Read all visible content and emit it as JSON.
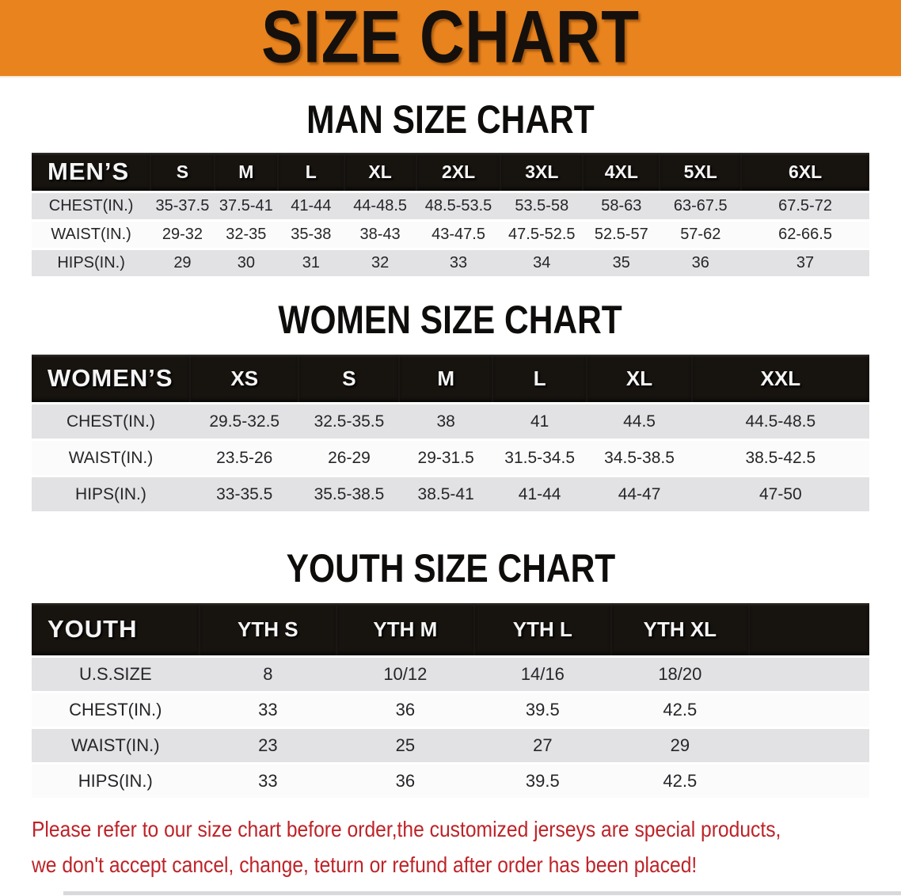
{
  "banner": {
    "title": "SIZE CHART"
  },
  "sections": [
    {
      "heading": "MAN SIZE CHART",
      "table": {
        "header_label": "MEN’S",
        "columns": [
          "S",
          "M",
          "L",
          "XL",
          "2XL",
          "3XL",
          "4XL",
          "5XL",
          "6XL"
        ],
        "rows": [
          {
            "label": "CHEST(IN.)",
            "values": [
              "35-37.5",
              "37.5-41",
              "41-44",
              "44-48.5",
              "48.5-53.5",
              "53.5-58",
              "58-63",
              "63-67.5",
              "67.5-72"
            ]
          },
          {
            "label": "WAIST(IN.)",
            "values": [
              "29-32",
              "32-35",
              "35-38",
              "38-43",
              "43-47.5",
              "47.5-52.5",
              "52.5-57",
              "57-62",
              "62-66.5"
            ]
          },
          {
            "label": "HIPS(IN.)",
            "values": [
              "29",
              "30",
              "31",
              "32",
              "33",
              "34",
              "35",
              "36",
              "37"
            ]
          }
        ]
      }
    },
    {
      "heading": "WOMEN SIZE CHART",
      "table": {
        "header_label": "WOMEN’S",
        "columns": [
          "XS",
          "S",
          "M",
          "L",
          "XL",
          "XXL"
        ],
        "rows": [
          {
            "label": "CHEST(IN.)",
            "values": [
              "29.5-32.5",
              "32.5-35.5",
              "38",
              "41",
              "44.5",
              "44.5-48.5"
            ]
          },
          {
            "label": "WAIST(IN.)",
            "values": [
              "23.5-26",
              "26-29",
              "29-31.5",
              "31.5-34.5",
              "34.5-38.5",
              "38.5-42.5"
            ]
          },
          {
            "label": "HIPS(IN.)",
            "values": [
              "33-35.5",
              "35.5-38.5",
              "38.5-41",
              "41-44",
              "44-47",
              "47-50"
            ]
          }
        ]
      }
    },
    {
      "heading": "YOUTH SIZE CHART",
      "table": {
        "header_label": "YOUTH",
        "columns": [
          "YTH S",
          "YTH M",
          "YTH L",
          "YTH XL"
        ],
        "rows": [
          {
            "label": "U.S.SIZE",
            "values": [
              "8",
              "10/12",
              "14/16",
              "18/20"
            ]
          },
          {
            "label": "CHEST(IN.)",
            "values": [
              "33",
              "36",
              "39.5",
              "42.5"
            ]
          },
          {
            "label": "WAIST(IN.)",
            "values": [
              "23",
              "25",
              "27",
              "29"
            ]
          },
          {
            "label": "HIPS(IN.)",
            "values": [
              "33",
              "36",
              "39.5",
              "42.5"
            ]
          }
        ]
      }
    }
  ],
  "disclaimer": {
    "line1": "Please refer to our size chart before order,the customized jerseys are special products,",
    "line2": "we don't accept cancel, change, teturn or refund after order has been placed!"
  },
  "colors": {
    "banner_bg": "#E8831E",
    "header_bar": "#17130F",
    "row_gray": "#E2E2E4",
    "row_white": "#FBFBFB",
    "disclaimer_red": "#BE2328"
  }
}
